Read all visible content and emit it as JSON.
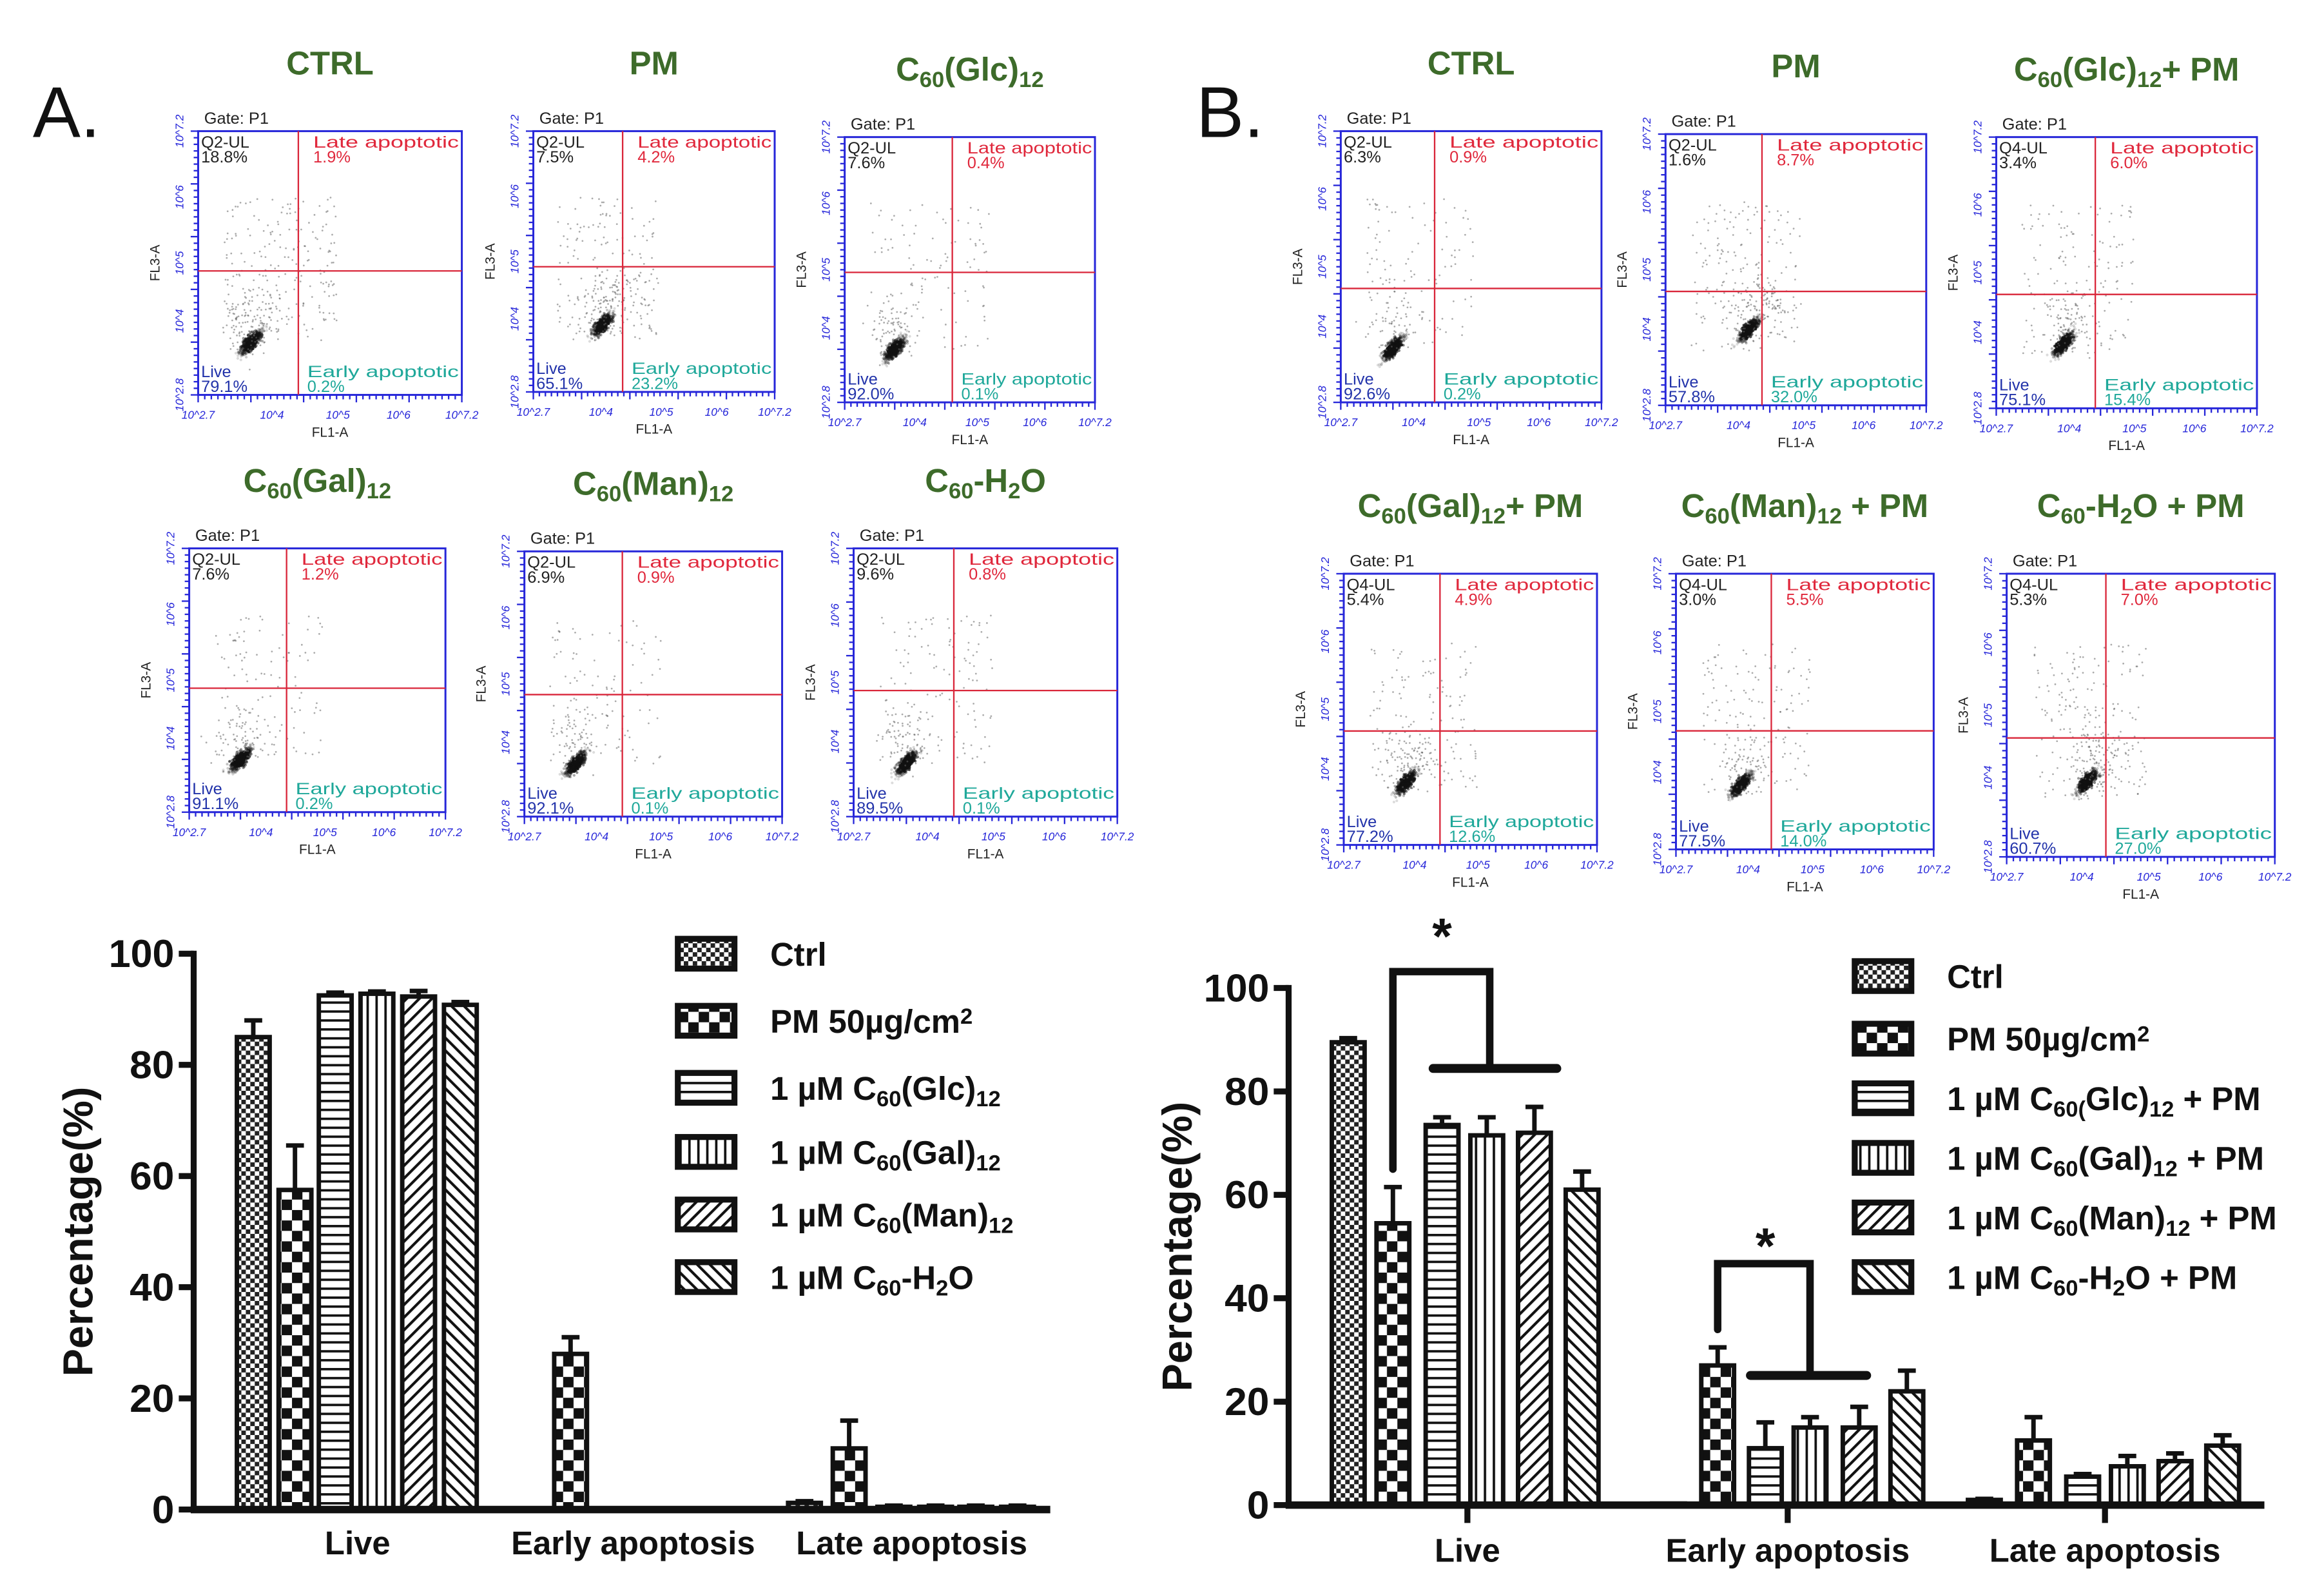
{
  "panels": [
    {
      "letter": "A.",
      "flow_plots": [
        {
          "title": [
            "CTRL"
          ],
          "ul_label": "Q2-UL",
          "ul": "18.8%",
          "ur": "1.9%",
          "ll": "79.1%",
          "lr": "0.2%"
        },
        {
          "title": [
            "PM"
          ],
          "ul_label": "Q2-UL",
          "ul": "7.5%",
          "ur": "4.2%",
          "ll": "65.1%",
          "lr": "23.2%"
        },
        {
          "title": [
            "C",
            {
              "sub": "60"
            },
            "(Glc)",
            {
              "sub": "12"
            }
          ],
          "ul_label": "Q2-UL",
          "ul": "7.6%",
          "ur": "0.4%",
          "ll": "92.0%",
          "lr": "0.1%"
        },
        {
          "title": [
            "C",
            {
              "sub": "60"
            },
            "(Gal)",
            {
              "sub": "12"
            }
          ],
          "ul_label": "Q2-UL",
          "ul": "7.6%",
          "ur": "1.2%",
          "ll": "91.1%",
          "lr": "0.2%"
        },
        {
          "title": [
            "C",
            {
              "sub": "60"
            },
            "(Man)",
            {
              "sub": "12"
            }
          ],
          "ul_label": "Q2-UL",
          "ul": "6.9%",
          "ur": "0.9%",
          "ll": "92.1%",
          "lr": "0.1%"
        },
        {
          "title": [
            "C",
            {
              "sub": "60"
            },
            "-H",
            {
              "sub": "2"
            },
            "O"
          ],
          "ul_label": "Q2-UL",
          "ul": "9.6%",
          "ur": "0.8%",
          "ll": "89.5%",
          "lr": "0.1%"
        }
      ]
    },
    {
      "letter": "B.",
      "flow_plots": [
        {
          "title": [
            "CTRL"
          ],
          "ul_label": "Q2-UL",
          "ul": "6.3%",
          "ur": "0.9%",
          "ll": "92.6%",
          "lr": "0.2%"
        },
        {
          "title": [
            "PM"
          ],
          "ul_label": "Q2-UL",
          "ul": "1.6%",
          "ur": "8.7%",
          "ll": "57.8%",
          "lr": "32.0%"
        },
        {
          "title": [
            "C",
            {
              "sub": "60"
            },
            "(Glc)",
            {
              "sub": "12"
            },
            "+ PM"
          ],
          "ul_label": "Q4-UL",
          "ul": "3.4%",
          "ur": "6.0%",
          "ll": "75.1%",
          "lr": "15.4%"
        },
        {
          "title": [
            "C",
            {
              "sub": "60"
            },
            "(Gal)",
            {
              "sub": "12"
            },
            "+ PM"
          ],
          "ul_label": "Q4-UL",
          "ul": "5.4%",
          "ur": "4.9%",
          "ll": "77.2%",
          "lr": "12.6%"
        },
        {
          "title": [
            "C",
            {
              "sub": "60"
            },
            "(Man)",
            {
              "sub": "12"
            },
            " + PM"
          ],
          "ul_label": "Q4-UL",
          "ul": "3.0%",
          "ur": "5.5%",
          "ll": "77.5%",
          "lr": "14.0%"
        },
        {
          "title": [
            "C",
            {
              "sub": "60"
            },
            "-H",
            {
              "sub": "2"
            },
            "O  + PM"
          ],
          "ul_label": "Q4-UL",
          "ul": "5.3%",
          "ur": "7.0%",
          "ll": "60.7%",
          "lr": "27.0%"
        }
      ]
    }
  ],
  "flow_common": {
    "gate": "Gate: P1",
    "late_label": "Late apoptotic",
    "early_label": "Early apoptotic",
    "live_label": "Live",
    "x_axis": "FL1-A",
    "y_axis": "FL3-A",
    "x_ticks": [
      "10^2.7",
      "10^4",
      "10^5",
      "10^6",
      "10^7.2"
    ],
    "y_ticks": [
      "10^2.8",
      "10^4",
      "10^5",
      "10^6",
      "10^7.2"
    ]
  },
  "colors": {
    "box": "#2626d9",
    "gate": "#d9263a",
    "late": "#e0283c",
    "early": "#1fa89a",
    "live": "#2233aa",
    "title": "#3d6b2a"
  },
  "chart_data": [
    {
      "type": "bar",
      "panel": "A",
      "ylabel": "Percentage(%)",
      "ylim": [
        0,
        100
      ],
      "yticks": [
        0,
        20,
        40,
        60,
        80,
        100
      ],
      "categories": [
        "Live",
        "Early apoptosis",
        "Late apoptosis"
      ],
      "legend_position": "top-right",
      "series": [
        {
          "name": [
            "Ctrl"
          ],
          "pattern": "checker-small",
          "values": [
            85,
            0.2,
            1.2
          ],
          "errors": [
            3,
            0,
            0.3
          ]
        },
        {
          "name": [
            "PM 50µg/cm",
            {
              "sup": "2"
            }
          ],
          "pattern": "checker-large",
          "values": [
            57.5,
            28,
            11
          ],
          "errors": [
            8,
            3,
            5
          ]
        },
        {
          "name": [
            "1 µM C",
            {
              "sub": "60"
            },
            "(Glc)",
            {
              "sub": "12"
            }
          ],
          "pattern": "horizontal",
          "values": [
            92.5,
            0.1,
            0.5
          ],
          "errors": [
            0.5,
            0,
            0.2
          ]
        },
        {
          "name": [
            "1 µM C",
            {
              "sub": "60"
            },
            "(Gal)",
            {
              "sub": "12"
            }
          ],
          "pattern": "vertical",
          "values": [
            92.8,
            0.2,
            0.5
          ],
          "errors": [
            0.4,
            0,
            0.2
          ]
        },
        {
          "name": [
            "1 µM C",
            {
              "sub": "60"
            },
            "(Man)",
            {
              "sub": "12"
            }
          ],
          "pattern": "diag-right",
          "values": [
            92.3,
            0.1,
            0.5
          ],
          "errors": [
            1,
            0,
            0.2
          ]
        },
        {
          "name": [
            "1 µM C",
            {
              "sub": "60"
            },
            "-H",
            {
              "sub": "2"
            },
            "O"
          ],
          "pattern": "diag-left",
          "values": [
            90.8,
            0.1,
            0.5
          ],
          "errors": [
            0.5,
            0,
            0.2
          ]
        }
      ],
      "significance": []
    },
    {
      "type": "bar",
      "panel": "B",
      "ylabel": "Percentage(%)",
      "ylim": [
        0,
        100
      ],
      "yticks": [
        0,
        20,
        40,
        60,
        80,
        100
      ],
      "categories": [
        "Live",
        "Early apoptosis",
        "Late apoptosis"
      ],
      "legend_position": "top-right",
      "series": [
        {
          "name": [
            "Ctrl"
          ],
          "pattern": "checker-small",
          "values": [
            89.5,
            0.3,
            1
          ],
          "errors": [
            0.8,
            0,
            0.2
          ]
        },
        {
          "name": [
            "PM 50µg/cm",
            {
              "sup": "2"
            }
          ],
          "pattern": "checker-large",
          "values": [
            54.5,
            27,
            12.5
          ],
          "errors": [
            7,
            3.5,
            4.5
          ]
        },
        {
          "name": [
            "1 µM C",
            {
              "sub": "60("
            },
            "Glc)",
            {
              "sub": "12"
            },
            " + PM"
          ],
          "pattern": "horizontal",
          "values": [
            73.5,
            11,
            5.5
          ],
          "errors": [
            1.5,
            5,
            0.5
          ]
        },
        {
          "name": [
            "1 µM C",
            {
              "sub": "60"
            },
            "(Gal)",
            {
              "sub": "12"
            },
            " + PM"
          ],
          "pattern": "vertical",
          "values": [
            71.5,
            15,
            7.5
          ],
          "errors": [
            3.5,
            2,
            2
          ]
        },
        {
          "name": [
            "1 µM C",
            {
              "sub": "60"
            },
            "(Man)",
            {
              "sub": "12"
            },
            " + PM"
          ],
          "pattern": "diag-right",
          "values": [
            72,
            15,
            8.5
          ],
          "errors": [
            5,
            4,
            1.5
          ]
        },
        {
          "name": [
            "1 µM C",
            {
              "sub": "60"
            },
            "-H",
            {
              "sub": "2"
            },
            "O + PM"
          ],
          "pattern": "diag-left",
          "values": [
            61,
            22,
            11.5
          ],
          "errors": [
            3.5,
            4,
            2
          ]
        }
      ],
      "significance": [
        {
          "category": "Live",
          "label": "*",
          "from_series": 1,
          "to_series": [
            2,
            4
          ]
        },
        {
          "category": "Early apoptosis",
          "label": "*",
          "from_series": 1,
          "to_series": [
            2,
            4
          ]
        }
      ]
    }
  ]
}
